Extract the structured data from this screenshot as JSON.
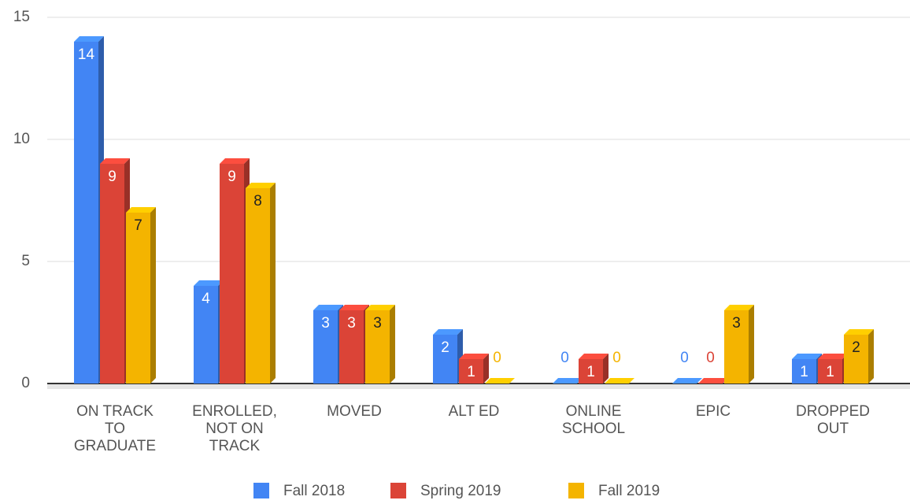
{
  "chart_data": {
    "type": "bar3d",
    "categories": [
      "ON TRACK TO GRADUATE",
      "ENROLLED, NOT ON TRACK",
      "MOVED",
      "ALT ED",
      "ONLINE SCHOOL",
      "EPIC",
      "DROPPED OUT"
    ],
    "series": [
      {
        "name": "Fall 2018",
        "color": "#4285f4",
        "label_color": "#ffffff",
        "values": [
          14,
          4,
          3,
          2,
          0,
          0,
          1
        ]
      },
      {
        "name": "Spring 2019",
        "color": "#db4437",
        "label_color": "#ffffff",
        "values": [
          9,
          9,
          3,
          1,
          1,
          0,
          1
        ]
      },
      {
        "name": "Fall 2019",
        "color": "#f4b400",
        "label_color": "#222222",
        "values": [
          7,
          8,
          3,
          0,
          0,
          3,
          2
        ]
      }
    ],
    "ylim": [
      0,
      15
    ],
    "yticks": [
      0,
      5,
      10,
      15
    ],
    "grid": true,
    "legend": "bottom"
  }
}
